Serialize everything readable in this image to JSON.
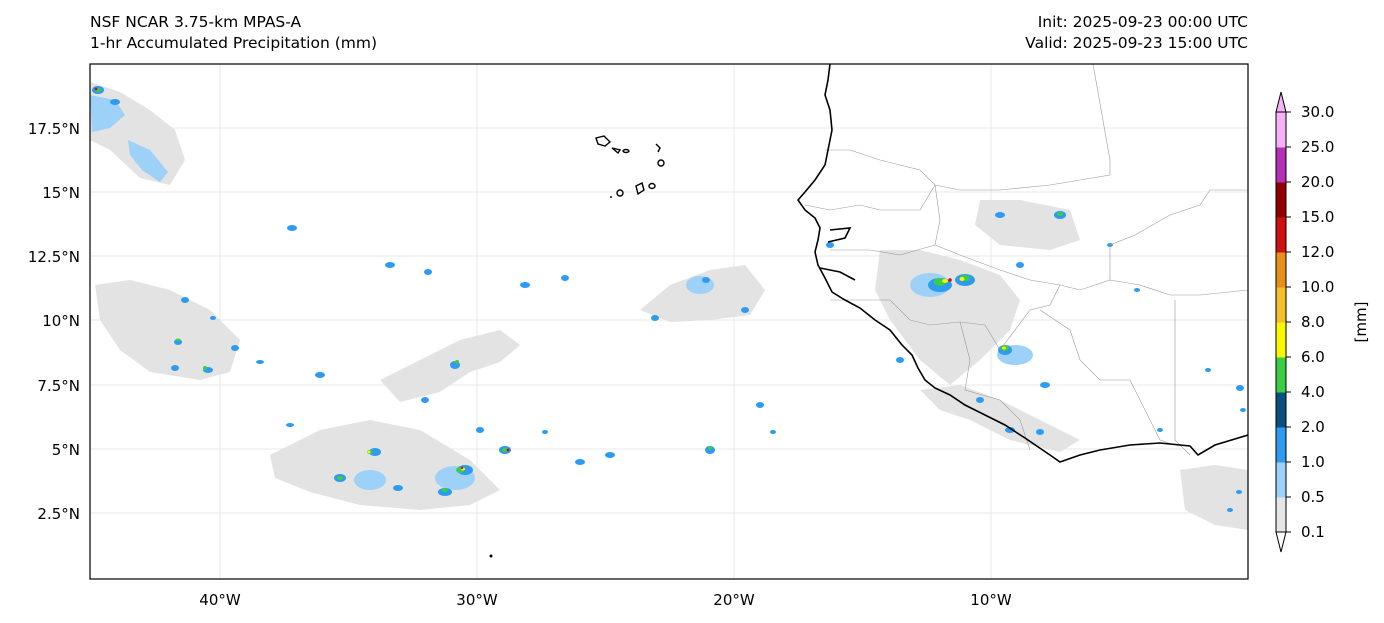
{
  "header": {
    "model": "NSF NCAR 3.75-km MPAS-A",
    "field": "1-hr Accumulated Precipitation (mm)",
    "init": "Init: 2025-09-23 00:00 UTC",
    "valid": "Valid: 2025-09-23 15:00 UTC"
  },
  "map": {
    "lat_labels": [
      "17.5°N",
      "15°N",
      "12.5°N",
      "10°N",
      "7.5°N",
      "5°N",
      "2.5°N"
    ],
    "lon_labels": [
      "40°W",
      "30°W",
      "20°W",
      "10°W"
    ],
    "gridlines": true
  },
  "colorbar": {
    "label": "[mm]",
    "ticks": [
      "0.1",
      "0.5",
      "1.0",
      "2.0",
      "4.0",
      "6.0",
      "8.0",
      "10.0",
      "12.0",
      "15.0",
      "20.0",
      "25.0",
      "30.0"
    ],
    "colors": [
      "#e6e6e6",
      "#9dd1f7",
      "#2c9bf0",
      "#0b4f7f",
      "#3ccd46",
      "#f8f800",
      "#f7be2c",
      "#e88f1a",
      "#ce1010",
      "#900000",
      "#b52fb9",
      "#f5b2f7"
    ],
    "extend": "both"
  }
}
